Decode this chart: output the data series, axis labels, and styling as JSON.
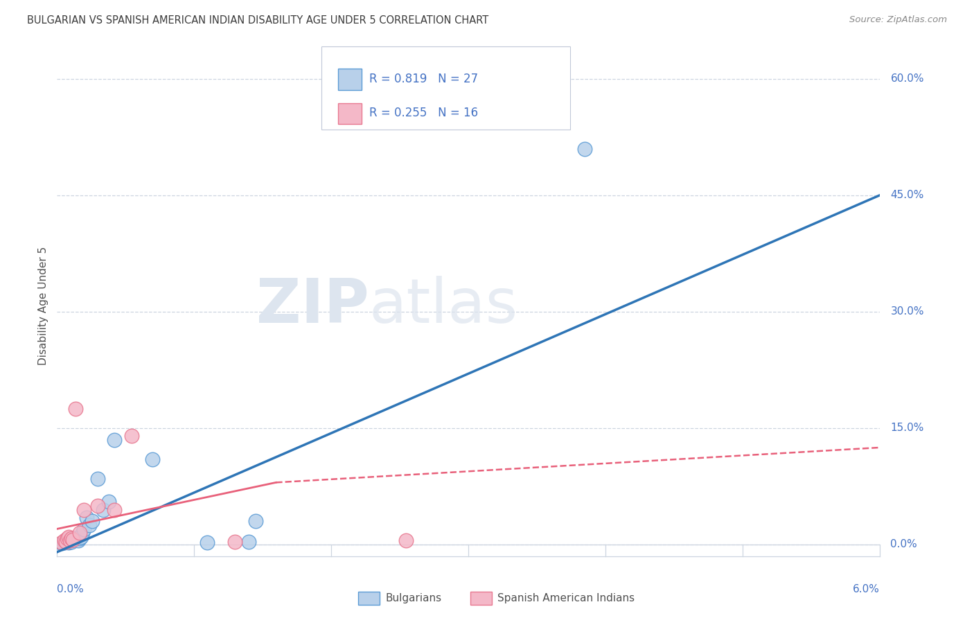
{
  "title": "BULGARIAN VS SPANISH AMERICAN INDIAN DISABILITY AGE UNDER 5 CORRELATION CHART",
  "source": "Source: ZipAtlas.com",
  "ylabel": "Disability Age Under 5",
  "y_tick_vals": [
    0.0,
    15.0,
    30.0,
    45.0,
    60.0
  ],
  "y_tick_labels": [
    "0.0%",
    "15.0%",
    "30.0%",
    "45.0%",
    "60.0%"
  ],
  "x_tick_left_label": "0.0%",
  "x_tick_right_label": "6.0%",
  "xlim": [
    0.0,
    6.0
  ],
  "ylim": [
    -1.5,
    63.0
  ],
  "r_bulgarian": 0.819,
  "n_bulgarian": 27,
  "r_spanish": 0.255,
  "n_spanish": 16,
  "bulgarian_fill": "#b8d0ea",
  "bulgarian_edge": "#5b9bd5",
  "bulgarian_line": "#2e75b6",
  "spanish_fill": "#f4b8c8",
  "spanish_edge": "#e87890",
  "spanish_line": "#e8607a",
  "bg_color": "#ffffff",
  "grid_color": "#cdd5e0",
  "watermark_color": "#dde5ef",
  "title_color": "#3c3c3c",
  "source_color": "#888888",
  "axis_tick_color": "#4472c4",
  "legend_text_color": "#4472c4",
  "bottom_legend_text_color": "#505050",
  "bulgarian_line_x0": 0.0,
  "bulgarian_line_y0": -1.0,
  "bulgarian_line_x1": 6.0,
  "bulgarian_line_y1": 45.0,
  "spanish_solid_x0": 0.0,
  "spanish_solid_y0": 2.0,
  "spanish_solid_x1": 1.6,
  "spanish_solid_y1": 8.0,
  "spanish_dash_x0": 1.6,
  "spanish_dash_y0": 8.0,
  "spanish_dash_x1": 6.0,
  "spanish_dash_y1": 12.5,
  "bulgarians_x": [
    0.04,
    0.06,
    0.07,
    0.08,
    0.09,
    0.1,
    0.11,
    0.12,
    0.13,
    0.14,
    0.16,
    0.17,
    0.18,
    0.19,
    0.2,
    0.22,
    0.24,
    0.26,
    0.3,
    0.34,
    0.38,
    0.42,
    0.7,
    1.1,
    1.4,
    1.45,
    3.85
  ],
  "bulgarians_y": [
    0.2,
    0.3,
    0.4,
    0.5,
    0.3,
    0.5,
    0.4,
    0.6,
    0.8,
    0.7,
    0.5,
    0.8,
    1.0,
    1.5,
    2.0,
    3.5,
    2.5,
    3.0,
    8.5,
    4.5,
    5.5,
    13.5,
    11.0,
    0.3,
    0.4,
    3.0,
    51.0
  ],
  "spanish_x": [
    0.04,
    0.06,
    0.07,
    0.08,
    0.09,
    0.1,
    0.11,
    0.12,
    0.14,
    0.17,
    0.2,
    0.3,
    0.42,
    0.55,
    1.3,
    2.55
  ],
  "spanish_y": [
    0.3,
    0.5,
    0.4,
    0.8,
    1.0,
    0.5,
    0.8,
    0.6,
    17.5,
    1.5,
    4.5,
    5.0,
    4.5,
    14.0,
    0.4,
    0.5
  ]
}
